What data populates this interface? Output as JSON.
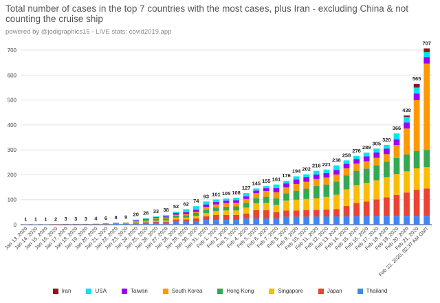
{
  "title": "Total number of cases in the top 7 countries with the most cases, plus Iran - excluding China & not counting the cruise ship",
  "subtitle": "powered by @jodigraphics15 - LIVE stats: covid2019.app",
  "chart_data": {
    "type": "bar",
    "stacked": true,
    "title": "Total number of cases in the top 7 countries with the most cases, plus Iran - excluding China & not counting the cruise ship",
    "ylim": [
      0,
      700
    ],
    "yticks": [
      0,
      100,
      200,
      300,
      400,
      500,
      600,
      700
    ],
    "grid": true,
    "legend_position": "bottom",
    "categories": [
      "Jan 13, 2020",
      "Jan 14, 2020",
      "Jan 15, 2020",
      "Jan 16, 2020",
      "Jan 17, 2020",
      "Jan 18, 2020",
      "Jan 19, 2020",
      "Jan 20, 2020",
      "Jan 21, 2020",
      "Jan 22, 2020",
      "Jan 23, 2020",
      "Jan 24, 2020",
      "Jan 25, 2020",
      "Jan 26, 2020",
      "Jan 27, 2020",
      "Jan 28, 2020",
      "Jan 29, 2020",
      "Jan 30, 2020",
      "Jan 31, 2020",
      "Feb 1, 2020",
      "Feb 2, 2020",
      "Feb 3, 2020",
      "Feb 4, 2020",
      "Feb 5, 2020",
      "Feb 6, 2020",
      "Feb 7, 2020",
      "Feb 8, 2020",
      "Feb 9, 2020",
      "Feb 10, 2020",
      "Feb 11, 2020",
      "Feb 12, 2020",
      "Feb 13, 2020",
      "Feb 14, 2020",
      "Feb 15, 2020",
      "Feb 16, 2020",
      "Feb 17, 2020",
      "Feb 18, 2020",
      "Feb 19, 2020",
      "Feb 20, 2020",
      "Feb 21, 2020",
      "Feb 22, 2020, 02:37 AM GMT"
    ],
    "totals": [
      1,
      1,
      1,
      2,
      3,
      3,
      3,
      4,
      6,
      8,
      9,
      20,
      26,
      33,
      38,
      52,
      62,
      74,
      93,
      101,
      105,
      108,
      127,
      145,
      155,
      161,
      176,
      194,
      202,
      216,
      221,
      238,
      258,
      276,
      289,
      305,
      320,
      366,
      438,
      565,
      707
    ],
    "series": [
      {
        "name": "Thailand",
        "color": "#4285f4",
        "values": [
          1,
          1,
          1,
          1,
          2,
          2,
          2,
          2,
          2,
          4,
          4,
          5,
          7,
          8,
          8,
          14,
          14,
          14,
          19,
          19,
          19,
          19,
          25,
          25,
          25,
          25,
          32,
          32,
          32,
          33,
          33,
          33,
          34,
          34,
          34,
          35,
          35,
          35,
          35,
          35,
          35
        ]
      },
      {
        "name": "Japan",
        "color": "#ea4335",
        "values": [
          0,
          0,
          0,
          1,
          1,
          1,
          1,
          1,
          1,
          1,
          1,
          2,
          3,
          4,
          4,
          7,
          7,
          11,
          15,
          20,
          20,
          20,
          20,
          33,
          33,
          25,
          25,
          25,
          26,
          26,
          28,
          29,
          41,
          53,
          59,
          66,
          74,
          84,
          94,
          105,
          110
        ]
      },
      {
        "name": "Singapore",
        "color": "#fbbc04",
        "values": [
          0,
          0,
          0,
          0,
          0,
          0,
          0,
          0,
          0,
          0,
          1,
          3,
          3,
          4,
          5,
          7,
          7,
          10,
          13,
          16,
          18,
          18,
          24,
          28,
          30,
          30,
          40,
          43,
          45,
          47,
          50,
          58,
          67,
          72,
          75,
          77,
          81,
          84,
          85,
          86,
          86
        ]
      },
      {
        "name": "Hong Kong",
        "color": "#34a853",
        "values": [
          0,
          0,
          0,
          0,
          0,
          0,
          0,
          0,
          0,
          0,
          2,
          2,
          5,
          8,
          8,
          8,
          10,
          12,
          13,
          14,
          15,
          16,
          18,
          21,
          24,
          26,
          29,
          36,
          42,
          49,
          50,
          53,
          56,
          57,
          57,
          60,
          62,
          65,
          68,
          70,
          69
        ]
      },
      {
        "name": "South Korea",
        "color": "#ff9900",
        "values": [
          0,
          0,
          0,
          0,
          0,
          0,
          0,
          1,
          1,
          1,
          1,
          2,
          2,
          3,
          4,
          4,
          4,
          4,
          11,
          12,
          15,
          15,
          16,
          19,
          23,
          24,
          24,
          27,
          27,
          28,
          28,
          28,
          28,
          29,
          29,
          30,
          31,
          51,
          104,
          204,
          346
        ]
      },
      {
        "name": "Taiwan",
        "color": "#9900ff",
        "values": [
          0,
          0,
          0,
          0,
          0,
          0,
          0,
          0,
          1,
          1,
          0,
          3,
          3,
          3,
          4,
          7,
          8,
          9,
          10,
          10,
          10,
          10,
          11,
          11,
          11,
          16,
          16,
          18,
          18,
          18,
          18,
          18,
          18,
          18,
          20,
          22,
          22,
          23,
          24,
          26,
          26
        ]
      },
      {
        "name": "USA",
        "color": "#00e5ee",
        "values": [
          0,
          0,
          0,
          0,
          0,
          0,
          0,
          0,
          1,
          1,
          0,
          3,
          3,
          3,
          5,
          5,
          12,
          14,
          12,
          10,
          8,
          10,
          13,
          8,
          9,
          15,
          10,
          13,
          12,
          15,
          14,
          19,
          14,
          13,
          15,
          15,
          15,
          24,
          22,
          24,
          20
        ]
      },
      {
        "name": "Iran",
        "color": "#8b1a1a",
        "values": [
          0,
          0,
          0,
          0,
          0,
          0,
          0,
          0,
          0,
          0,
          0,
          0,
          0,
          0,
          0,
          0,
          0,
          0,
          0,
          0,
          0,
          0,
          0,
          0,
          0,
          0,
          0,
          0,
          0,
          0,
          0,
          0,
          0,
          0,
          0,
          0,
          0,
          0,
          6,
          15,
          15
        ]
      }
    ],
    "legend_order": [
      "Iran",
      "USA",
      "Taiwan",
      "South Korea",
      "Hong Kong",
      "Singapore",
      "Japan",
      "Thailand"
    ]
  }
}
